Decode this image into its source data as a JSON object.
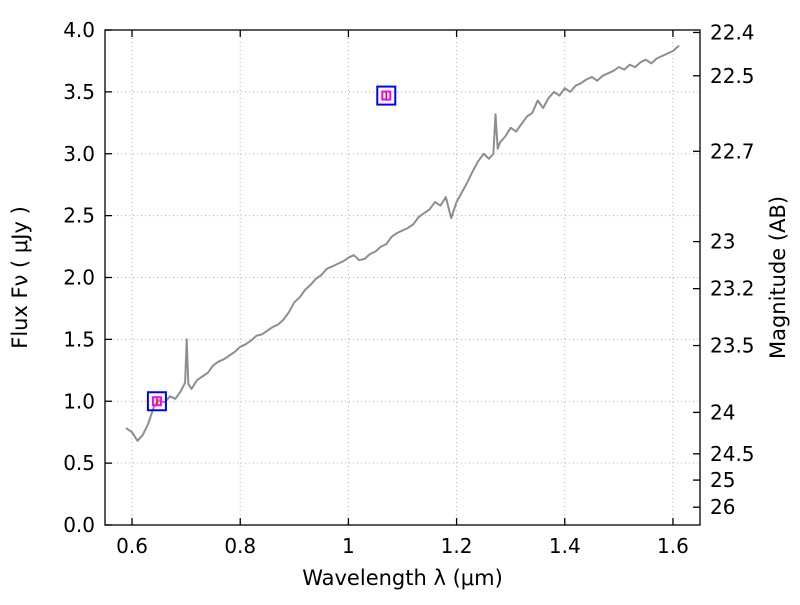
{
  "chart_data": {
    "type": "line",
    "title": "",
    "xlabel": "Wavelength  λ (μm)",
    "ylabel_left": "Flux  Fν  ( μJy )",
    "ylabel_right": "Magnitude (AB)",
    "xlim": [
      0.55,
      1.65
    ],
    "ylim": [
      0.0,
      4.0
    ],
    "grid": true,
    "x_ticks": [
      {
        "value": 0.6,
        "label": "0.6"
      },
      {
        "value": 0.8,
        "label": "0.8"
      },
      {
        "value": 1.0,
        "label": "1"
      },
      {
        "value": 1.2,
        "label": "1.2"
      },
      {
        "value": 1.4,
        "label": "1.4"
      },
      {
        "value": 1.6,
        "label": "1.6"
      }
    ],
    "y_ticks_left": [
      {
        "value": 0.0,
        "label": "0.0"
      },
      {
        "value": 0.5,
        "label": "0.5"
      },
      {
        "value": 1.0,
        "label": "1.0"
      },
      {
        "value": 1.5,
        "label": "1.5"
      },
      {
        "value": 2.0,
        "label": "2.0"
      },
      {
        "value": 2.5,
        "label": "2.5"
      },
      {
        "value": 3.0,
        "label": "3.0"
      },
      {
        "value": 3.5,
        "label": "3.5"
      },
      {
        "value": 4.0,
        "label": "4.0"
      }
    ],
    "y_ticks_right": [
      {
        "label": "22.4",
        "flux": 3.98
      },
      {
        "label": "22.5",
        "flux": 3.63
      },
      {
        "label": "22.7",
        "flux": 3.02
      },
      {
        "label": "23",
        "flux": 2.29
      },
      {
        "label": "23.2",
        "flux": 1.91
      },
      {
        "label": "23.5",
        "flux": 1.45
      },
      {
        "label": "24",
        "flux": 0.91
      },
      {
        "label": "24.5",
        "flux": 0.575
      },
      {
        "label": "25",
        "flux": 0.363
      },
      {
        "label": "26",
        "flux": 0.144
      }
    ],
    "colors": {
      "line": "#8e8e8e",
      "grid": "#b3b3b3",
      "frame": "#000000",
      "marker_outer": "#0000ff",
      "marker_inner": "#ff00ff",
      "marker_error": "#ff0000"
    },
    "series": [
      {
        "name": "spectrum",
        "x": [
          0.59,
          0.6,
          0.61,
          0.62,
          0.63,
          0.64,
          0.65,
          0.66,
          0.67,
          0.68,
          0.69,
          0.698,
          0.701,
          0.704,
          0.71,
          0.72,
          0.73,
          0.74,
          0.75,
          0.76,
          0.77,
          0.78,
          0.79,
          0.8,
          0.81,
          0.82,
          0.83,
          0.84,
          0.85,
          0.86,
          0.87,
          0.88,
          0.89,
          0.9,
          0.91,
          0.92,
          0.93,
          0.94,
          0.95,
          0.96,
          0.97,
          0.98,
          0.99,
          1.0,
          1.01,
          1.02,
          1.03,
          1.04,
          1.05,
          1.06,
          1.07,
          1.08,
          1.09,
          1.1,
          1.11,
          1.12,
          1.13,
          1.14,
          1.15,
          1.16,
          1.17,
          1.18,
          1.19,
          1.2,
          1.21,
          1.22,
          1.23,
          1.24,
          1.25,
          1.26,
          1.268,
          1.272,
          1.276,
          1.28,
          1.29,
          1.3,
          1.31,
          1.32,
          1.33,
          1.34,
          1.35,
          1.36,
          1.37,
          1.38,
          1.39,
          1.4,
          1.41,
          1.42,
          1.43,
          1.44,
          1.45,
          1.46,
          1.47,
          1.48,
          1.49,
          1.5,
          1.51,
          1.52,
          1.53,
          1.54,
          1.55,
          1.56,
          1.57,
          1.58,
          1.59,
          1.6,
          1.61
        ],
        "y": [
          0.78,
          0.75,
          0.68,
          0.73,
          0.82,
          0.95,
          1.01,
          0.99,
          1.04,
          1.02,
          1.08,
          1.15,
          1.5,
          1.14,
          1.1,
          1.17,
          1.2,
          1.23,
          1.29,
          1.32,
          1.34,
          1.37,
          1.4,
          1.44,
          1.46,
          1.49,
          1.53,
          1.54,
          1.57,
          1.6,
          1.62,
          1.66,
          1.72,
          1.8,
          1.84,
          1.9,
          1.94,
          1.99,
          2.02,
          2.07,
          2.09,
          2.11,
          2.13,
          2.16,
          2.18,
          2.14,
          2.15,
          2.19,
          2.21,
          2.25,
          2.27,
          2.33,
          2.36,
          2.38,
          2.4,
          2.43,
          2.49,
          2.52,
          2.55,
          2.61,
          2.58,
          2.65,
          2.48,
          2.61,
          2.69,
          2.77,
          2.86,
          2.94,
          3.0,
          2.96,
          3.0,
          3.32,
          3.04,
          3.09,
          3.14,
          3.21,
          3.18,
          3.24,
          3.3,
          3.33,
          3.43,
          3.37,
          3.45,
          3.5,
          3.47,
          3.53,
          3.5,
          3.55,
          3.57,
          3.6,
          3.62,
          3.59,
          3.63,
          3.65,
          3.67,
          3.7,
          3.68,
          3.72,
          3.7,
          3.74,
          3.76,
          3.73,
          3.77,
          3.79,
          3.81,
          3.83,
          3.87
        ]
      }
    ],
    "points": [
      {
        "name": "photometry-point-1",
        "x": 0.646,
        "y": 1.0
      },
      {
        "name": "photometry-point-2",
        "x": 1.07,
        "y": 3.47
      }
    ]
  }
}
